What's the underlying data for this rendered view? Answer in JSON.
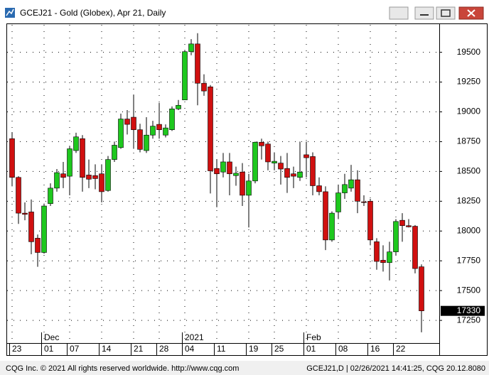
{
  "window_title": "GCEJ21 - Gold (Globex), Apr 21, Daily",
  "footer_left": "CQG Inc. © 2021 All rights reserved worldwide. http://www.cqg.com",
  "footer_right": "GCEJ21,D | 02/26/2021 14:41:25, CQG 20.12.8080",
  "chart_data": {
    "type": "candlestick",
    "categories": [
      "23",
      null,
      null,
      null,
      null,
      "01",
      null,
      null,
      null,
      "07",
      null,
      null,
      null,
      null,
      "14",
      null,
      null,
      null,
      null,
      "21",
      null,
      null,
      null,
      "28",
      null,
      null,
      null,
      "04",
      null,
      null,
      null,
      null,
      "11",
      null,
      null,
      null,
      null,
      "19",
      null,
      null,
      null,
      "25",
      null,
      null,
      null,
      null,
      "01",
      null,
      null,
      null,
      null,
      "08",
      null,
      null,
      null,
      null,
      "16",
      null,
      null,
      null,
      "22",
      null,
      null,
      null,
      null
    ],
    "month_labels": [
      null,
      null,
      null,
      null,
      null,
      "Dec",
      null,
      null,
      null,
      null,
      null,
      null,
      null,
      null,
      null,
      null,
      null,
      null,
      null,
      null,
      null,
      null,
      null,
      null,
      null,
      null,
      null,
      "2021",
      null,
      null,
      null,
      null,
      null,
      null,
      null,
      null,
      null,
      null,
      null,
      null,
      null,
      null,
      null,
      null,
      null,
      null,
      "Feb",
      null,
      null,
      null,
      null,
      null,
      null,
      null,
      null,
      null,
      null,
      null,
      null,
      null,
      null,
      null,
      null,
      null,
      null
    ],
    "open": [
      18775,
      18450,
      18150,
      18160,
      17940,
      17820,
      18230,
      18360,
      18480,
      18460,
      18675,
      18775,
      18470,
      18465,
      18480,
      18340,
      18600,
      18700,
      18940,
      18955,
      18850,
      18675,
      18805,
      18895,
      18805,
      18850,
      19025,
      19100,
      19505,
      19570,
      19240,
      19210,
      18525,
      18495,
      18580,
      18465,
      18495,
      18300,
      18420,
      18745,
      18730,
      18570,
      18570,
      18525,
      18480,
      18450,
      18640,
      18625,
      18380,
      18330,
      17925,
      18160,
      18320,
      18360,
      18430,
      18245,
      18250,
      17910,
      17755,
      17735,
      17825,
      18090,
      18045,
      18040,
      17700
    ],
    "high": [
      18830,
      18460,
      18240,
      18265,
      17970,
      18230,
      18400,
      18520,
      18580,
      18715,
      18825,
      18805,
      18600,
      18560,
      18560,
      18630,
      18750,
      18985,
      19015,
      19145,
      18900,
      18955,
      18925,
      19075,
      18895,
      19045,
      19100,
      19520,
      19610,
      19660,
      19315,
      19225,
      18600,
      18655,
      18655,
      18540,
      18570,
      18480,
      18750,
      18775,
      18750,
      18660,
      18630,
      18655,
      18540,
      18750,
      18750,
      18660,
      18450,
      18375,
      18165,
      18390,
      18480,
      18555,
      18510,
      18300,
      18270,
      17940,
      17880,
      17910,
      18100,
      18150,
      18100,
      18050,
      17720
    ],
    "low": [
      18375,
      18060,
      18090,
      17805,
      17700,
      17810,
      18210,
      18330,
      18360,
      18300,
      18655,
      18330,
      18360,
      18350,
      18240,
      18330,
      18580,
      18690,
      18810,
      18690,
      18660,
      18655,
      18775,
      18775,
      18785,
      18840,
      19015,
      19100,
      19475,
      19055,
      19135,
      18315,
      18200,
      18450,
      18300,
      18380,
      18210,
      18030,
      18400,
      18600,
      18510,
      18510,
      18390,
      18320,
      18360,
      18420,
      18450,
      18300,
      18300,
      17840,
      17910,
      18100,
      18270,
      18330,
      18150,
      18210,
      17880,
      17675,
      17660,
      17585,
      17795,
      17910,
      18030,
      17645,
      17150
    ],
    "close": [
      18450,
      18150,
      18140,
      17910,
      17820,
      18210,
      18360,
      18490,
      18450,
      18690,
      18790,
      18450,
      18435,
      18440,
      18330,
      18600,
      18720,
      18940,
      18895,
      18850,
      18685,
      18805,
      18880,
      18850,
      18865,
      19025,
      19055,
      19505,
      19570,
      19240,
      19175,
      18505,
      18480,
      18580,
      18480,
      18485,
      18300,
      18420,
      18745,
      18715,
      18580,
      18585,
      18520,
      18450,
      18460,
      18495,
      18615,
      18380,
      18330,
      17925,
      18150,
      18320,
      18390,
      18430,
      18250,
      18240,
      17925,
      17745,
      17735,
      17825,
      18080,
      18045,
      18035,
      17685,
      17330
    ],
    "up_color": "#1ec81e",
    "down_color": "#d01010",
    "last_price": 17330,
    "ylim": [
      17060,
      19730
    ],
    "yticks": [
      17250,
      17500,
      17750,
      18000,
      18250,
      18500,
      18750,
      19000,
      19250,
      19500
    ],
    "grid": true
  }
}
